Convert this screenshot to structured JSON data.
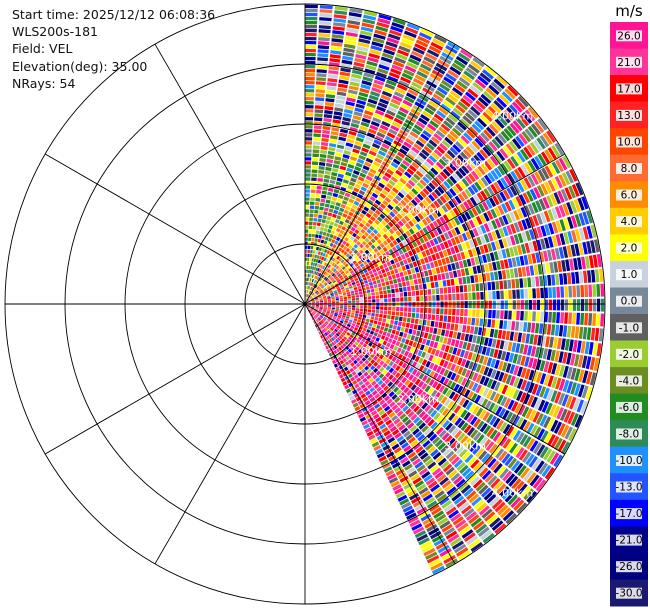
{
  "info": {
    "start_time": "Start time: 2025/12/12 06:08:36",
    "instrument": "WLS200s-181",
    "field": "Field: VEL",
    "elevation": "Elevation(deg): 35.00",
    "nrays": "NRays: 54"
  },
  "chart_data": {
    "type": "heatmap",
    "projection": "polar-ppi",
    "sector_deg": [
      0,
      155
    ],
    "range_rings_km": [
      1,
      2,
      3,
      4
    ],
    "range_ring_labels": [
      "1.00km",
      "2.00km",
      "3.00km",
      "4.00km"
    ],
    "max_range_km": 4.5,
    "colorbar": {
      "unit": "m/s",
      "ticks": [
        "26.0",
        "21.0",
        "17.0",
        "13.0",
        "10.0",
        "8.0",
        "6.0",
        "4.0",
        "2.0",
        "1.0",
        "0.0",
        "-1.0",
        "-2.0",
        "-4.0",
        "-6.0",
        "-8.0",
        "-10.0",
        "-13.0",
        "-17.0",
        "-21.0",
        "-26.0",
        "-30.0"
      ],
      "colors": [
        "#ff1493",
        "#ff3399",
        "#ff0000",
        "#ff2222",
        "#ff4500",
        "#ff6a33",
        "#ff8c00",
        "#ffcc00",
        "#ffff00",
        "#c8d2dc",
        "#778899",
        "#606060",
        "#9acd32",
        "#6b8e23",
        "#228b22",
        "#2e8b57",
        "#1e90ff",
        "#2255ff",
        "#0000ff",
        "#00008b",
        "#000080",
        "#191970"
      ]
    }
  }
}
